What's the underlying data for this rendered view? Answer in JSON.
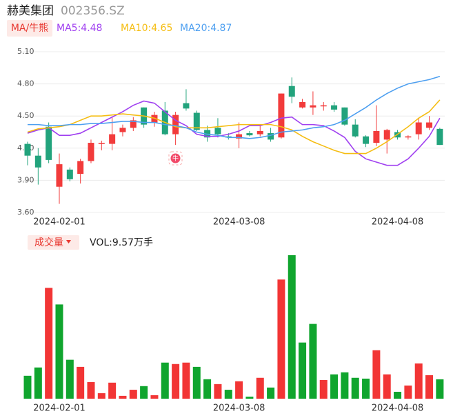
{
  "header": {
    "name": "赫美集团",
    "code": "002356.SZ"
  },
  "chart_data": [
    {
      "type": "candlestick",
      "toggle": "MA/牛熊",
      "annotation": "牛",
      "categories": [
        null,
        null,
        null,
        "2024-02-01",
        null,
        null,
        null,
        null,
        null,
        null,
        null,
        null,
        null,
        null,
        null,
        null,
        null,
        null,
        null,
        null,
        "2024-03-08",
        null,
        null,
        null,
        null,
        null,
        null,
        null,
        null,
        null,
        null,
        null,
        null,
        null,
        null,
        "2024-04-08",
        null,
        null,
        null,
        null
      ],
      "open": [
        4.24,
        4.13,
        4.4,
        3.84,
        4.0,
        3.96,
        4.08,
        4.24,
        4.24,
        4.35,
        4.39,
        4.58,
        4.44,
        4.55,
        4.33,
        4.62,
        4.53,
        4.37,
        4.39,
        4.31,
        4.29,
        4.34,
        4.33,
        4.34,
        4.3,
        4.78,
        4.58,
        4.58,
        4.59,
        4.6,
        4.58,
        4.42,
        4.31,
        4.25,
        4.28,
        4.35,
        4.3,
        4.33,
        4.39,
        4.38
      ],
      "high": [
        4.26,
        4.2,
        4.44,
        4.15,
        4.02,
        4.1,
        4.28,
        4.27,
        4.49,
        4.42,
        4.49,
        4.58,
        4.54,
        4.63,
        4.54,
        4.75,
        4.55,
        4.41,
        4.48,
        4.34,
        4.44,
        4.36,
        4.42,
        4.39,
        4.71,
        4.86,
        4.66,
        4.73,
        4.63,
        4.63,
        4.58,
        4.47,
        4.32,
        4.6,
        4.38,
        4.37,
        4.32,
        4.48,
        4.5,
        4.39
      ],
      "low": [
        4.04,
        3.86,
        4.06,
        3.68,
        3.89,
        3.87,
        4.06,
        4.18,
        4.18,
        4.31,
        4.36,
        4.39,
        4.4,
        4.32,
        4.23,
        4.55,
        4.36,
        4.26,
        4.3,
        4.28,
        4.2,
        4.31,
        4.31,
        4.26,
        4.29,
        4.62,
        4.57,
        4.51,
        4.55,
        4.54,
        4.41,
        4.3,
        4.21,
        4.22,
        4.15,
        4.28,
        4.28,
        4.28,
        4.37,
        4.23
      ],
      "close": [
        4.13,
        4.02,
        4.09,
        4.05,
        3.91,
        4.08,
        4.25,
        4.25,
        4.33,
        4.39,
        4.46,
        4.42,
        4.51,
        4.33,
        4.51,
        4.57,
        4.37,
        4.3,
        4.33,
        4.3,
        4.33,
        4.32,
        4.36,
        4.28,
        4.71,
        4.68,
        4.63,
        4.6,
        4.6,
        4.56,
        4.42,
        4.31,
        4.24,
        4.36,
        4.37,
        4.3,
        4.31,
        4.44,
        4.44,
        4.23
      ],
      "up_color": "#f23b3b",
      "down_color": "#22a37c",
      "series": [
        {
          "name": "MA5:4.48",
          "color": "#a040f0",
          "values": [
            4.34,
            4.37,
            4.39,
            4.32,
            4.32,
            4.34,
            4.39,
            4.44,
            4.49,
            4.54,
            4.6,
            4.64,
            4.62,
            4.54,
            4.46,
            4.41,
            4.33,
            4.31,
            4.31,
            4.33,
            4.36,
            4.41,
            4.41,
            4.44,
            4.48,
            4.49,
            4.42,
            4.42,
            4.41,
            4.36,
            4.3,
            4.17,
            4.1,
            4.07,
            4.04,
            4.04,
            4.1,
            4.2,
            4.31,
            4.48
          ]
        },
        {
          "name": "MA10:4.65",
          "color": "#f5bd12",
          "values": [
            4.35,
            4.38,
            4.39,
            4.4,
            4.42,
            4.46,
            4.5,
            4.5,
            4.51,
            4.52,
            4.51,
            4.5,
            4.48,
            4.44,
            4.4,
            4.39,
            4.39,
            4.39,
            4.4,
            4.41,
            4.42,
            4.42,
            4.42,
            4.42,
            4.4,
            4.37,
            4.31,
            4.26,
            4.22,
            4.18,
            4.15,
            4.15,
            4.15,
            4.2,
            4.26,
            4.33,
            4.4,
            4.48,
            4.54,
            4.65
          ]
        },
        {
          "name": "MA20:4.87",
          "color": "#4d9ff0",
          "values": [
            4.42,
            4.42,
            4.41,
            4.41,
            4.42,
            4.42,
            4.43,
            4.43,
            4.44,
            4.45,
            4.45,
            4.44,
            4.44,
            4.42,
            4.41,
            4.39,
            4.35,
            4.33,
            4.32,
            4.3,
            4.3,
            4.29,
            4.3,
            4.32,
            4.35,
            4.36,
            4.37,
            4.39,
            4.4,
            4.42,
            4.46,
            4.52,
            4.58,
            4.65,
            4.71,
            4.76,
            4.8,
            4.82,
            4.84,
            4.87
          ]
        }
      ],
      "ylim": [
        3.6,
        5.1
      ],
      "yticks": [
        {
          "value": 3.6,
          "label": "3.60"
        },
        {
          "value": 3.9,
          "label": "3.90"
        },
        {
          "value": 4.2,
          "label": "4.20"
        },
        {
          "value": 4.5,
          "label": "4.50"
        },
        {
          "value": 4.8,
          "label": "4.80"
        },
        {
          "value": 5.1,
          "label": "5.10"
        }
      ],
      "grid": true
    },
    {
      "type": "bar",
      "title": "成交量",
      "label": "VOL:9.57万手",
      "categories": [
        null,
        null,
        null,
        "2024-02-01",
        null,
        null,
        null,
        null,
        null,
        null,
        null,
        null,
        null,
        null,
        null,
        null,
        null,
        null,
        null,
        null,
        "2024-03-08",
        null,
        null,
        null,
        null,
        null,
        null,
        null,
        null,
        null,
        null,
        null,
        null,
        null,
        null,
        "2024-04-08",
        null,
        null,
        null,
        null
      ],
      "values": [
        11.3,
        15.4,
        54.7,
        46.5,
        19.2,
        15.7,
        8.2,
        2.7,
        7.9,
        1.4,
        4.4,
        6.2,
        1.7,
        17.8,
        17.1,
        17.8,
        15.7,
        9.6,
        7.2,
        4.4,
        8.6,
        1.0,
        10.3,
        5.5,
        58.8,
        70.8,
        27.7,
        36.9,
        9.2,
        12.0,
        13.0,
        10.3,
        9.9,
        23.9,
        12.0,
        3.4,
        6.5,
        17.4,
        11.6,
        9.57
      ],
      "colors": [
        "#10a52e",
        "#10a52e",
        "#f23535",
        "#10a52e",
        "#10a52e",
        "#f23535",
        "#f23535",
        "#f23535",
        "#f23535",
        "#f23535",
        "#f23535",
        "#10a52e",
        "#f23535",
        "#10a52e",
        "#f23535",
        "#f23535",
        "#10a52e",
        "#10a52e",
        "#f23535",
        "#10a52e",
        "#f23535",
        "#10a52e",
        "#f23535",
        "#10a52e",
        "#f23535",
        "#10a52e",
        "#10a52e",
        "#10a52e",
        "#f23535",
        "#10a52e",
        "#10a52e",
        "#10a52e",
        "#10a52e",
        "#f23535",
        "#f23535",
        "#10a52e",
        "#f23535",
        "#f23535",
        "#f23535",
        "#10a52e"
      ]
    }
  ]
}
